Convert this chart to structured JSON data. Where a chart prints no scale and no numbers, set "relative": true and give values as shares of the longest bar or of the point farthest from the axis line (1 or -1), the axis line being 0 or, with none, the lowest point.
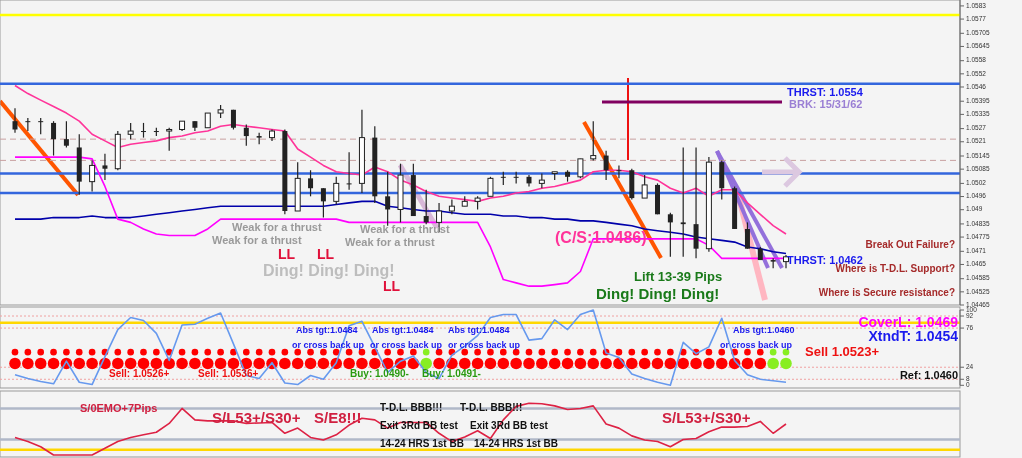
{
  "chart_data": [
    {
      "type": "candlestick",
      "color": "#222222",
      "categories": [
        null,
        null,
        null,
        null,
        null,
        null,
        null,
        null,
        null,
        null,
        null,
        null,
        null,
        null,
        null,
        null,
        null,
        null,
        null,
        null,
        null,
        null,
        null,
        null,
        null,
        null,
        null,
        null,
        null,
        null,
        null,
        null,
        null,
        null,
        null,
        null,
        null,
        null,
        null,
        null,
        null,
        null,
        null,
        null,
        null,
        null,
        null,
        null,
        null,
        null,
        null,
        null,
        null,
        null,
        null,
        null,
        null,
        null,
        null,
        null,
        null
      ],
      "ylim": [
        1.04465,
        1.05857
      ],
      "yticks": [
        1.04465,
        1.04525,
        1.04585,
        1.0465,
        1.0471,
        1.04775,
        1.04835,
        1.049,
        1.0496,
        1.0502,
        1.05085,
        1.05145,
        1.0521,
        1.0527,
        1.05335,
        1.05395,
        1.0546,
        1.0552,
        1.0558,
        1.05645,
        1.05705,
        1.0577,
        1.0583
      ],
      "ohlc": [
        [
          1.05304,
          1.05363,
          1.05251,
          1.05266
        ],
        [
          1.05304,
          1.05318,
          1.05259,
          1.05304
        ],
        [
          1.05304,
          1.05318,
          1.05244,
          1.05304
        ],
        [
          1.05296,
          1.05304,
          1.05147,
          1.05222
        ],
        [
          1.05222,
          1.05304,
          1.05184,
          1.05192
        ],
        [
          1.05184,
          1.05244,
          1.04968,
          1.05028
        ],
        [
          1.05028,
          1.05125,
          1.04983,
          1.05102
        ],
        [
          1.05102,
          1.05155,
          1.05035,
          1.05087
        ],
        [
          1.05087,
          1.05259,
          1.0508,
          1.05244
        ],
        [
          1.05244,
          1.05296,
          1.05222,
          1.05259
        ],
        [
          1.05259,
          1.05296,
          1.05229,
          1.05259
        ],
        [
          1.05259,
          1.05274,
          1.05236,
          1.05259
        ],
        [
          1.05259,
          1.05274,
          1.05169,
          1.05266
        ],
        [
          1.05266,
          1.05304,
          1.05259,
          1.05304
        ],
        [
          1.05304,
          1.05304,
          1.05259,
          1.05274
        ],
        [
          1.05274,
          1.05341,
          1.05274,
          1.05341
        ],
        [
          1.05341,
          1.05378,
          1.05318,
          1.05356
        ],
        [
          1.05356,
          1.05356,
          1.05266,
          1.05274
        ],
        [
          1.05274,
          1.05289,
          1.05192,
          1.05236
        ],
        [
          1.05236,
          1.05251,
          1.05199,
          1.05229
        ],
        [
          1.05229,
          1.05266,
          1.05214,
          1.05259
        ],
        [
          1.05259,
          1.05266,
          1.04879,
          1.04894
        ],
        [
          1.04894,
          1.05117,
          1.04894,
          1.05043
        ],
        [
          1.05043,
          1.0508,
          1.04961,
          1.04998
        ],
        [
          1.04998,
          1.04998,
          1.04864,
          1.04938
        ],
        [
          1.04938,
          1.0505,
          1.04924,
          1.0502
        ],
        [
          1.0502,
          1.05162,
          1.04991,
          1.0502
        ],
        [
          1.0502,
          1.05356,
          1.04976,
          1.05229
        ],
        [
          1.05229,
          1.05281,
          1.04931,
          1.04961
        ],
        [
          1.04961,
          1.05073,
          1.04827,
          1.04901
        ],
        [
          1.04901,
          1.0511,
          1.04842,
          1.05058
        ],
        [
          1.05058,
          1.0511,
          1.04871,
          1.04871
        ],
        [
          1.04871,
          1.04991,
          1.04834,
          1.04842
        ],
        [
          1.04842,
          1.04931,
          1.04797,
          1.04894
        ],
        [
          1.04894,
          1.04946,
          1.04879,
          1.04916
        ],
        [
          1.04916,
          1.04961,
          1.04916,
          1.04938
        ],
        [
          1.04938,
          1.04961,
          1.04901,
          1.04953
        ],
        [
          1.04961,
          1.0505,
          1.04961,
          1.05043
        ],
        [
          1.0505,
          1.05073,
          1.05013,
          1.0505
        ],
        [
          1.0505,
          1.05073,
          1.0502,
          1.0505
        ],
        [
          1.0505,
          1.05058,
          1.05006,
          1.0502
        ],
        [
          1.0502,
          1.05065,
          1.04998,
          1.05035
        ],
        [
          1.05065,
          1.05073,
          1.05035,
          1.05073
        ],
        [
          1.05073,
          1.0508,
          1.05028,
          1.0505
        ],
        [
          1.0505,
          1.05132,
          1.05043,
          1.05132
        ],
        [
          1.05132,
          1.05304,
          1.05125,
          1.05147
        ],
        [
          1.05147,
          1.05169,
          1.05035,
          1.0508
        ],
        [
          1.0508,
          1.05102,
          1.05043,
          1.0508
        ],
        [
          1.0508,
          1.05087,
          1.04946,
          1.04953
        ],
        [
          1.04953,
          1.05058,
          1.04953,
          1.05013
        ],
        [
          1.05013,
          1.0502,
          1.04879,
          1.04879
        ],
        [
          1.04879,
          1.04886,
          1.04685,
          1.04842
        ],
        [
          1.04842,
          1.05184,
          1.04685,
          1.04834
        ],
        [
          1.04834,
          1.05184,
          1.04678,
          1.04722
        ],
        [
          1.04722,
          1.0514,
          1.04708,
          1.05117
        ],
        [
          1.05117,
          1.05125,
          1.04946,
          1.04998
        ],
        [
          1.04998,
          1.05006,
          1.04812,
          1.04812
        ],
        [
          1.04812,
          1.04842,
          1.04722,
          1.04722
        ],
        [
          1.04722,
          1.0473,
          1.0467,
          1.0467
        ],
        [
          1.0467,
          1.04678,
          1.04633,
          1.04663
        ],
        [
          1.04663,
          1.04693,
          1.04633,
          1.04685
        ]
      ],
      "series": [
        {
          "type": "line",
          "color": "#ff3399",
          "values": [
            1.05467,
            1.0543,
            1.054,
            1.05371,
            1.05341,
            1.05304,
            1.05244,
            1.05214,
            1.05184,
            1.05199,
            1.05207,
            1.05214,
            1.05229,
            1.05236,
            1.05251,
            1.05259,
            1.05281,
            1.05289,
            1.05281,
            1.05274,
            1.05266,
            1.05259,
            1.05177,
            1.0514,
            1.05102,
            1.05073,
            1.05065,
            1.05058,
            1.05095,
            1.05073,
            1.05035,
            1.05013,
            1.04983,
            1.04961,
            1.04953,
            1.04946,
            1.04938,
            1.04953,
            1.04961,
            1.04976,
            1.04983,
            1.04998,
            1.05006,
            1.0502,
            1.05035,
            1.05073,
            1.0508,
            1.0508,
            1.05073,
            1.0505,
            1.05035,
            1.04998,
            1.04976,
            1.04998,
            1.04961,
            1.04991,
            1.04991,
            1.04931,
            1.04879,
            1.04827,
            1.04789
          ]
        },
        {
          "type": "line",
          "color": "#0000aa",
          "values": [
            1.04857,
            1.04857,
            1.04857,
            1.04864,
            1.04864,
            1.04864,
            1.04871,
            1.04864,
            1.04864,
            1.04864,
            1.04871,
            1.04879,
            1.04886,
            1.04894,
            1.04901,
            1.04909,
            1.04916,
            1.04916,
            1.04916,
            1.04916,
            1.04916,
            1.04916,
            1.04916,
            1.04916,
            1.04916,
            1.04924,
            1.04931,
            1.04938,
            1.04938,
            1.04916,
            1.04909,
            1.04901,
            1.04894,
            1.04894,
            1.04886,
            1.04879,
            1.04879,
            1.04879,
            1.04871,
            1.04871,
            1.04864,
            1.04864,
            1.04857,
            1.04857,
            1.04849,
            1.04849,
            1.04842,
            1.04834,
            1.04827,
            1.04812,
            1.04804,
            1.04797,
            1.04789,
            1.04775,
            1.04767,
            1.0476,
            1.04752,
            1.0473,
            1.04722,
            1.04708,
            1.047
          ]
        },
        {
          "type": "line",
          "color": "#ff00ff",
          "values": [
            1.0514,
            1.0514,
            1.0514,
            1.0514,
            1.0514,
            1.0514,
            1.05132,
            1.05006,
            1.04857,
            1.04842,
            1.04812,
            1.04789,
            1.04782,
            1.04782,
            1.04782,
            1.04812,
            1.04857,
            1.04857,
            1.04857,
            1.04857,
            1.04857,
            1.04857,
            1.04857,
            1.04857,
            1.04857,
            1.04857,
            1.04842,
            1.04842,
            1.04842,
            1.04842,
            1.04842,
            1.04842,
            1.04842,
            1.04842,
            1.04842,
            1.04842,
            1.04842,
            1.0473,
            1.04581,
            1.04566,
            1.04551,
            1.04551,
            1.04558,
            1.04566,
            1.04618,
            1.04767,
            1.04767,
            1.04767,
            1.04767,
            1.04767,
            1.04767,
            1.04767,
            1.04767,
            1.04767,
            1.04737,
            1.04678,
            1.04678,
            1.04678,
            1.04678,
            1.04678,
            1.04678
          ]
        }
      ],
      "ref_lines": [
        {
          "axis": "y",
          "value": 1.05788,
          "color": "#ffff00"
        },
        {
          "axis": "y",
          "value": 1.05475,
          "color": "#3366dd"
        },
        {
          "axis": "y",
          "value": 1.05222,
          "color": "#c8a0a0",
          "line_style": "dashed"
        },
        {
          "axis": "y",
          "value": 1.05125,
          "color": "#c8a0a0",
          "line_style": "dashed"
        },
        {
          "axis": "y",
          "value": 1.05065,
          "color": "#3366dd"
        },
        {
          "axis": "y",
          "value": 1.04976,
          "color": "#3366dd"
        }
      ],
      "annotations": [
        "Weak for a thrust",
        "Weak for a thrust",
        "Weak for a thrust",
        "Weak for a thrust",
        "LL",
        "LL",
        "LL",
        "Ding! Ding! Ding!",
        "(C/S:1.0486)",
        "THRST: 1.0554",
        "BRK: 15/31/62",
        "THRST: 1.0462",
        "Break Out Failure?",
        "Where is T-D.L. Support?",
        "Where is Secure resistance?",
        "Lift 13-39 Pips",
        "Ding! Ding! Ding!"
      ]
    },
    {
      "type": "line",
      "categories": [
        null,
        null,
        null,
        null,
        null,
        null,
        null,
        null,
        null,
        null,
        null,
        null,
        null,
        null,
        null,
        null,
        null,
        null,
        null,
        null,
        null,
        null,
        null,
        null,
        null,
        null,
        null,
        null,
        null,
        null,
        null,
        null,
        null,
        null,
        null,
        null,
        null,
        null,
        null,
        null,
        null,
        null,
        null,
        null,
        null,
        null,
        null,
        null,
        null,
        null,
        null,
        null,
        null,
        null,
        null,
        null,
        null,
        null,
        null,
        null,
        null
      ],
      "ylim": [
        0,
        100
      ],
      "yticks": [
        0,
        8,
        24,
        76,
        92,
        100
      ],
      "series": [
        {
          "type": "scatter",
          "values": [
            44,
            44,
            44,
            44,
            44,
            44,
            44,
            44,
            44,
            44,
            44,
            44,
            44,
            44,
            44,
            44,
            44,
            44,
            44,
            44,
            44,
            44,
            44,
            44,
            44,
            44,
            44,
            44,
            44,
            44,
            44,
            44,
            44,
            44,
            44,
            44,
            44,
            44,
            44,
            44,
            44,
            44,
            44,
            44,
            44,
            44,
            44,
            44,
            44,
            44,
            44,
            44,
            44,
            44,
            44,
            44,
            44,
            44,
            44,
            44,
            44
          ],
          "colors": [
            "#ff0000",
            "#ff0000",
            "#ff0000",
            "#ff0000",
            "#ff0000",
            "#ff0000",
            "#ff0000",
            "#ff0000",
            "#ff0000",
            "#ff0000",
            "#ff0000",
            "#ff0000",
            "#ff0000",
            "#ff0000",
            "#ff0000",
            "#ff0000",
            "#ff0000",
            "#ff0000",
            "#ff0000",
            "#ff0000",
            "#ff0000",
            "#ff0000",
            "#ff0000",
            "#ff0000",
            "#ff0000",
            "#ff0000",
            "#ff0000",
            "#ff0000",
            "#ff0000",
            "#ff0000",
            "#ff0000",
            "#ff0000",
            "#88ee22",
            "#ff0000",
            "#ff0000",
            "#ff0000",
            "#ff0000",
            "#ff0000",
            "#ff0000",
            "#ff0000",
            "#ff0000",
            "#ff0000",
            "#ff0000",
            "#ff0000",
            "#ff0000",
            "#ff0000",
            "#ff0000",
            "#ff0000",
            "#ff0000",
            "#ff0000",
            "#ff0000",
            "#ff0000",
            "#ff0000",
            "#ff0000",
            "#ff0000",
            "#ff0000",
            "#ff0000",
            "#ff0000",
            "#ff0000",
            "#88ee22",
            "#88ee22"
          ]
        },
        {
          "type": "scatter",
          "values": [
            29,
            29,
            29,
            29,
            29,
            29,
            29,
            29,
            29,
            29,
            29,
            29,
            29,
            29,
            29,
            29,
            29,
            29,
            29,
            29,
            29,
            29,
            29,
            29,
            29,
            29,
            29,
            29,
            29,
            29,
            29,
            29,
            29,
            29,
            29,
            29,
            29,
            29,
            29,
            29,
            29,
            29,
            29,
            29,
            29,
            29,
            29,
            29,
            29,
            29,
            29,
            29,
            29,
            29,
            29,
            29,
            29,
            29,
            29,
            29,
            29
          ],
          "colors": [
            "#ff0000",
            "#ff0000",
            "#ff0000",
            "#ff0000",
            "#ff0000",
            "#ff0000",
            "#ff0000",
            "#ff0000",
            "#ff0000",
            "#ff0000",
            "#ff0000",
            "#ff0000",
            "#ff0000",
            "#ff0000",
            "#ff0000",
            "#ff0000",
            "#ff0000",
            "#ff0000",
            "#ff0000",
            "#ff0000",
            "#ff0000",
            "#ff0000",
            "#ff0000",
            "#ff0000",
            "#ff0000",
            "#ff0000",
            "#ff0000",
            "#ff0000",
            "#ff0000",
            "#ff0000",
            "#ff0000",
            "#ff0000",
            "#88ee22",
            "#ff0000",
            "#ff0000",
            "#ff0000",
            "#ff0000",
            "#ff0000",
            "#ff0000",
            "#ff0000",
            "#ff0000",
            "#ff0000",
            "#ff0000",
            "#ff0000",
            "#ff0000",
            "#ff0000",
            "#ff0000",
            "#ff0000",
            "#ff0000",
            "#ff0000",
            "#ff0000",
            "#ff0000",
            "#ff0000",
            "#ff0000",
            "#ff0000",
            "#ff0000",
            "#ff0000",
            "#ff0000",
            "#ff0000",
            "#88ee22",
            "#88ee22"
          ]
        },
        {
          "type": "line",
          "color": "#6699ee",
          "values": [
            14,
            9,
            5,
            2,
            32,
            4,
            1,
            38,
            74,
            90,
            86,
            69,
            33,
            80,
            81,
            89,
            96,
            55,
            13,
            9,
            30,
            3,
            1,
            13,
            8,
            30,
            79,
            85,
            51,
            17,
            32,
            39,
            17,
            9,
            40,
            52,
            66,
            90,
            94,
            94,
            60,
            62,
            87,
            74,
            94,
            100,
            43,
            37,
            15,
            9,
            4,
            0,
            57,
            42,
            51,
            89,
            33,
            14,
            8,
            6,
            4
          ]
        }
      ],
      "ref_lines": [
        {
          "axis": "y",
          "value": 92,
          "color": "#f0a0a0",
          "line_style": "dotted"
        },
        {
          "axis": "y",
          "value": 83,
          "color": "#ffd700"
        },
        {
          "axis": "y",
          "value": 76,
          "color": "#f0a0a0",
          "line_style": "dotted"
        },
        {
          "axis": "y",
          "value": 24,
          "color": "#f0a0a0",
          "line_style": "dotted"
        },
        {
          "axis": "y",
          "value": 8,
          "color": "#f0a0a0",
          "line_style": "dotted"
        }
      ],
      "annotations": [
        "Abs tgt:1.0484",
        "Abs tgt:1.0484",
        "Abs tgt:1.0484",
        "or cross back up",
        "or cross back up",
        "or cross back up",
        "Sell: 1.0526+",
        "Sell: 1.0536+",
        "Buy: 1.0490-",
        "Buy: 1.0491-",
        "Abs tgt:1.0460",
        "or cross back up",
        "Sell 1.0523+",
        "CoverL: 1.0469",
        "XtndT: 1.0454",
        "Ref: 1.0460"
      ]
    },
    {
      "type": "line",
      "relative": true,
      "categories": [
        null,
        null,
        null,
        null,
        null,
        null,
        null,
        null,
        null,
        null,
        null,
        null,
        null,
        null,
        null,
        null,
        null,
        null,
        null,
        null,
        null,
        null,
        null,
        null,
        null,
        null,
        null,
        null,
        null,
        null,
        null,
        null,
        null,
        null,
        null,
        null,
        null,
        null,
        null,
        null,
        null,
        null,
        null,
        null,
        null,
        null,
        null,
        null,
        null,
        null,
        null,
        null,
        null,
        null,
        null,
        null,
        null,
        null,
        null,
        null,
        null
      ],
      "series": [
        {
          "type": "line",
          "color": "#dd2244",
          "values": [
            0.34,
            0.26,
            0.16,
            0,
            0,
            0,
            0,
            0.13,
            0.26,
            0.34,
            0.39,
            0.44,
            0.61,
            0.9,
            0.68,
            0.66,
            0.66,
            0.66,
            0.61,
            0.62,
            0.63,
            0.42,
            0.52,
            0.34,
            0.29,
            0.39,
            0.58,
            0.71,
            0.68,
            0.52,
            0.63,
            0.63,
            0.63,
            0.42,
            0.26,
            0.35,
            0.47,
            0.32,
            0.68,
            0.94,
            1,
            0.99,
            0.95,
            0.88,
            0.9,
            0.95,
            0.6,
            0.52,
            0.37,
            0.29,
            0.26,
            0.16,
            0.3,
            0.32,
            0.45,
            0.54,
            0.54,
            0.55,
            0.65,
            0.42,
            0.6
          ]
        }
      ],
      "ref_lines": [
        {
          "axis": "y",
          "value": 0.9,
          "color": "#b0b8c8"
        },
        {
          "axis": "y",
          "value": 0.3,
          "color": "#b0b8c8"
        },
        {
          "axis": "y",
          "value": 0.1,
          "color": "#ffd700"
        }
      ],
      "annotations": [
        "S/0EMO+7Pips",
        "S/L53+/S30+",
        "S/E8!!!",
        "T-D.L. BBB!!!",
        "T-D.L. BBB!!!",
        "Exit 3Rd BB test",
        "Exit 3Rd BB test",
        "14-24 HRS 1st BB",
        "14-24 HRS 1st BB",
        "S/L53+/S30+"
      ]
    }
  ]
}
